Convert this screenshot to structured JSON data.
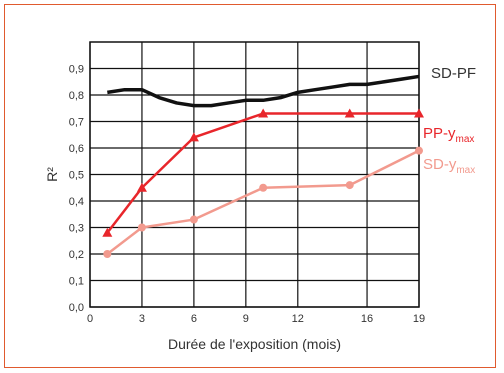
{
  "chart_data": {
    "type": "line",
    "title": "",
    "xlabel": "Durée de l'exposition (mois)",
    "ylabel": "R²",
    "xlim": [
      0,
      19
    ],
    "ylim": [
      0,
      1
    ],
    "xticks": [
      0,
      3,
      6,
      9,
      12,
      16,
      19
    ],
    "xtick_labels": [
      "0",
      "3",
      "6",
      "9",
      "12",
      "16",
      "19"
    ],
    "yticks": [
      0,
      0.1,
      0.2,
      0.3,
      0.4,
      0.5,
      0.6,
      0.7,
      0.8,
      0.9
    ],
    "ytick_labels": [
      "0,0",
      "0,1",
      "0,2",
      "0,3",
      "0,4",
      "0,5",
      "0,6",
      "0,7",
      "0,8",
      "0,9"
    ],
    "grid": true,
    "legend": "right",
    "series": [
      {
        "name": "SD-PF",
        "name_main": "SD-PF",
        "name_sub": "",
        "color": "#111111",
        "marker": "none",
        "x": [
          1,
          2,
          3,
          4,
          5,
          6,
          7,
          8,
          9,
          10,
          11,
          12,
          13,
          14,
          15,
          16,
          17,
          18,
          19
        ],
        "y": [
          0.81,
          0.82,
          0.82,
          0.79,
          0.77,
          0.76,
          0.76,
          0.77,
          0.78,
          0.78,
          0.79,
          0.81,
          0.82,
          0.83,
          0.84,
          0.84,
          0.85,
          0.86,
          0.87
        ]
      },
      {
        "name": "PP-ymax",
        "name_main": "PP-y",
        "name_sub": "max",
        "color": "#e8262b",
        "marker": "triangle",
        "x": [
          1,
          3,
          6,
          10,
          15,
          19
        ],
        "y": [
          0.28,
          0.45,
          0.64,
          0.73,
          0.73,
          0.73
        ]
      },
      {
        "name": "SD-ymax",
        "name_main": "SD-y",
        "name_sub": "max",
        "color": "#f29a8e",
        "marker": "circle",
        "x": [
          1,
          3,
          6,
          10,
          15,
          19
        ],
        "y": [
          0.2,
          0.3,
          0.33,
          0.45,
          0.46,
          0.59
        ]
      }
    ]
  }
}
